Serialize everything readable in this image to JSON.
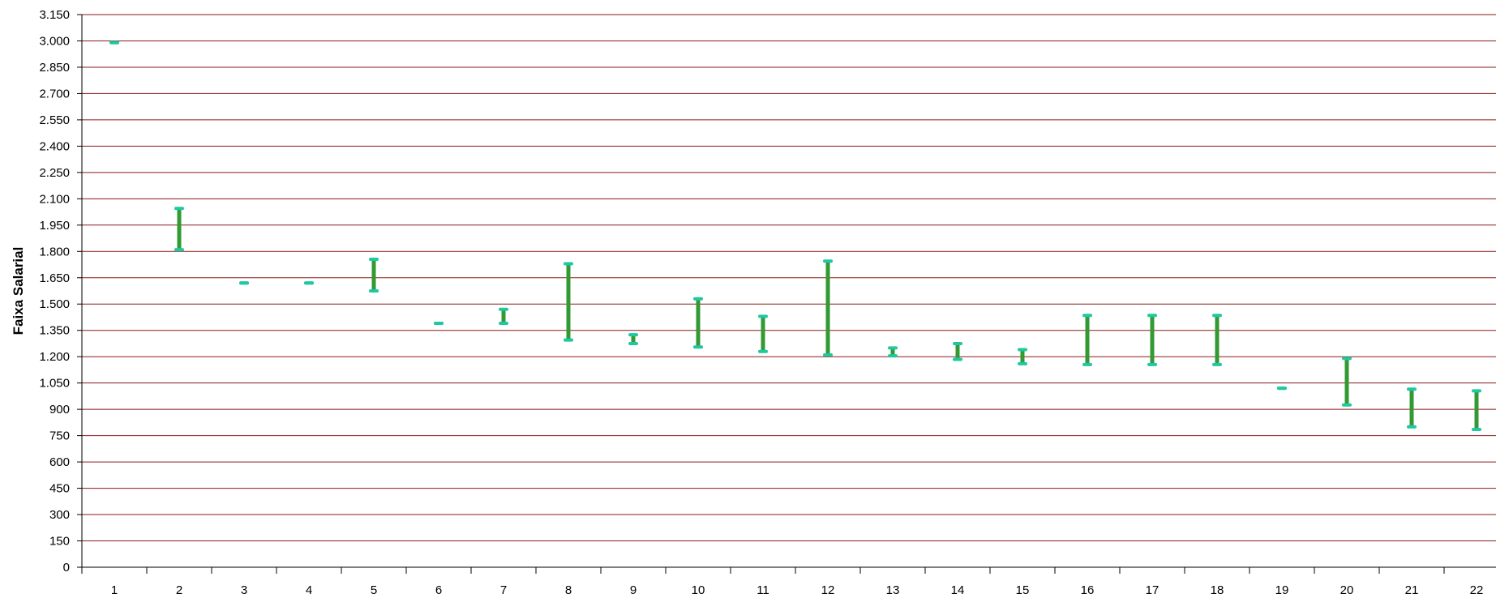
{
  "chart_data": {
    "type": "range",
    "title": "",
    "xlabel": "",
    "ylabel": "Faixa  Salarial",
    "categories": [
      "1",
      "2",
      "3",
      "4",
      "5",
      "6",
      "7",
      "8",
      "9",
      "10",
      "11",
      "12",
      "13",
      "14",
      "15",
      "16",
      "17",
      "18",
      "19",
      "20",
      "21",
      "22"
    ],
    "series": [
      {
        "low": [
          2990,
          1810,
          1620,
          1620,
          1575,
          1390,
          1390,
          1295,
          1275,
          1255,
          1230,
          1210,
          1205,
          1185,
          1160,
          1155,
          1155,
          1155,
          1020,
          925,
          800,
          785
        ],
        "high": [
          2990,
          2045,
          1620,
          1620,
          1755,
          1390,
          1470,
          1730,
          1325,
          1530,
          1430,
          1745,
          1250,
          1275,
          1240,
          1435,
          1435,
          1435,
          1020,
          1190,
          1015,
          1005
        ]
      }
    ],
    "ylim": [
      0,
      3150
    ],
    "yticks": [
      0,
      150,
      300,
      450,
      600,
      750,
      900,
      1050,
      1200,
      1350,
      1500,
      1650,
      1800,
      1950,
      2100,
      2250,
      2400,
      2550,
      2700,
      2850,
      3000,
      3150
    ],
    "ytick_labels": [
      "0",
      "150",
      "300",
      "450",
      "600",
      "750",
      "900",
      "1.050",
      "1.200",
      "1.350",
      "1.500",
      "1.650",
      "1.800",
      "1.950",
      "2.100",
      "2.250",
      "2.400",
      "2.550",
      "2.700",
      "2.850",
      "3.000",
      "3.150"
    ],
    "grid": true,
    "colors": {
      "gridline": "#8b1a1a",
      "bar": "#339933",
      "marker": "#1ec8a0",
      "axis": "#000000"
    }
  }
}
